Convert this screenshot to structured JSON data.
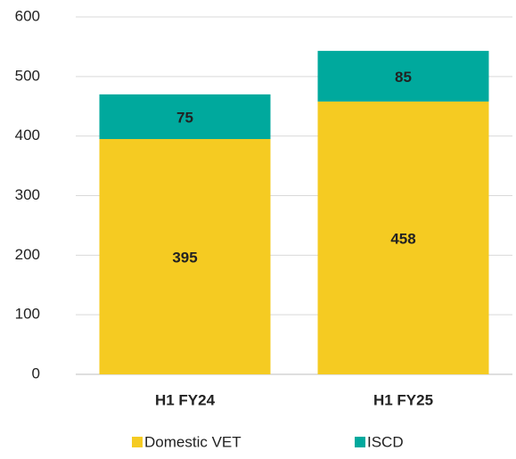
{
  "chart_data": {
    "type": "stacked_bar",
    "categories": [
      "H1 FY24",
      "H1 FY25"
    ],
    "series": [
      {
        "name": "Domestic VET",
        "color": "#f5cb22",
        "values": [
          395,
          458
        ]
      },
      {
        "name": "ISCD",
        "color": "#00a99d",
        "values": [
          75,
          85
        ]
      }
    ],
    "ylim": [
      0,
      600
    ],
    "yticks": [
      0,
      100,
      200,
      300,
      400,
      500,
      600
    ],
    "grid": true,
    "legend": "bottom"
  }
}
